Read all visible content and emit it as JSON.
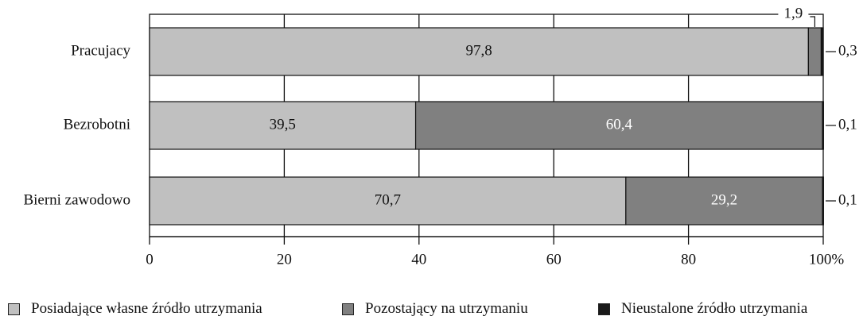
{
  "chart_data": {
    "type": "bar",
    "orientation": "horizontal",
    "stacked": true,
    "categories": [
      "Pracujacy",
      "Bezrobotni",
      "Bierni zawodowo"
    ],
    "series": [
      {
        "name": "Posiadające własne źródło utrzymania",
        "color": "#c0c0c0",
        "values": [
          97.8,
          39.5,
          70.7
        ],
        "labels": [
          "97,8",
          "39,5",
          "70,7"
        ]
      },
      {
        "name": "Pozostający na utrzymaniu",
        "color": "#808080",
        "values": [
          1.9,
          60.4,
          29.2
        ],
        "labels": [
          "1,9",
          "60,4",
          "29,2"
        ]
      },
      {
        "name": "Nieustalone źródło utrzymania",
        "color": "#1a1a1a",
        "values": [
          0.3,
          0.1,
          0.1
        ],
        "labels": [
          "0,3",
          "0,1",
          "0,1"
        ]
      }
    ],
    "xlim": [
      0,
      100
    ],
    "xticks": [
      "0",
      "20",
      "40",
      "60",
      "80",
      "100%"
    ],
    "grid": true,
    "legend_position": "bottom"
  }
}
